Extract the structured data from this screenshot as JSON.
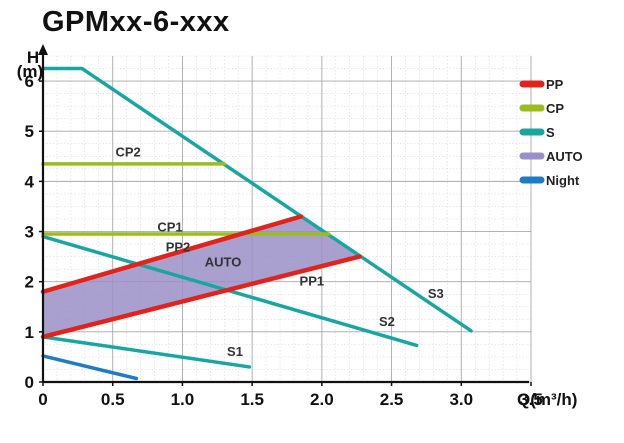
{
  "title": "GPMxx-6-xxx",
  "chart_data": {
    "type": "line",
    "xlabel": "Q(m³/h)",
    "ylabel": "H",
    "ylabel_unit": "(m)",
    "xlim": [
      0,
      3.5
    ],
    "ylim": [
      0,
      6.5
    ],
    "x_ticks": [
      "0",
      "0.5",
      "1.0",
      "1.5",
      "2.0",
      "2.5",
      "3.0",
      "3.5"
    ],
    "y_ticks": [
      "0",
      "1",
      "2",
      "3",
      "4",
      "5",
      "6"
    ],
    "grid": true,
    "legend_position": "right",
    "legend": [
      {
        "name": "PP",
        "color": "#e0241b"
      },
      {
        "name": "CP",
        "color": "#9cbc1e"
      },
      {
        "name": "S",
        "color": "#1aa6a0"
      },
      {
        "name": "AUTO",
        "color": "#9a8fc8"
      },
      {
        "name": "Night",
        "color": "#1e7bc4"
      }
    ],
    "areas": [
      {
        "name": "AUTO",
        "color": "#9a8fc8",
        "points": [
          [
            0,
            0.9
          ],
          [
            0,
            1.8
          ],
          [
            1.85,
            3.3
          ],
          [
            2.05,
            2.95
          ],
          [
            2.27,
            2.5
          ]
        ]
      }
    ],
    "series": [
      {
        "name": "S3",
        "group": "S",
        "points": [
          [
            0,
            6.25
          ],
          [
            0.28,
            6.25
          ],
          [
            3.07,
            1.02
          ]
        ]
      },
      {
        "name": "S2",
        "group": "S",
        "points": [
          [
            0,
            2.9
          ],
          [
            2.68,
            0.73
          ]
        ]
      },
      {
        "name": "S1",
        "group": "S",
        "points": [
          [
            0,
            0.9
          ],
          [
            1.48,
            0.3
          ]
        ]
      },
      {
        "name": "CP2",
        "group": "CP",
        "points": [
          [
            0,
            4.35
          ],
          [
            1.3,
            4.35
          ]
        ]
      },
      {
        "name": "CP1",
        "group": "CP",
        "points": [
          [
            0,
            2.95
          ],
          [
            2.05,
            2.95
          ]
        ]
      },
      {
        "name": "PP2",
        "group": "PP",
        "points": [
          [
            0,
            1.8
          ],
          [
            1.85,
            3.3
          ]
        ]
      },
      {
        "name": "PP1",
        "group": "PP",
        "points": [
          [
            0,
            0.9
          ],
          [
            2.27,
            2.5
          ]
        ]
      },
      {
        "name": "Night",
        "group": "Night",
        "points": [
          [
            0,
            0.52
          ],
          [
            0.67,
            0.07
          ]
        ]
      }
    ],
    "annotations": [
      {
        "text": "CP2",
        "x": 0.52,
        "y": 4.5
      },
      {
        "text": "CP1",
        "x": 0.82,
        "y": 3.0
      },
      {
        "text": "PP2",
        "x": 0.88,
        "y": 2.6
      },
      {
        "text": "AUTO",
        "x": 1.16,
        "y": 2.3
      },
      {
        "text": "PP1",
        "x": 1.84,
        "y": 1.92
      },
      {
        "text": "S3",
        "x": 2.76,
        "y": 1.67
      },
      {
        "text": "S2",
        "x": 2.41,
        "y": 1.12
      },
      {
        "text": "S1",
        "x": 1.32,
        "y": 0.52
      }
    ]
  }
}
